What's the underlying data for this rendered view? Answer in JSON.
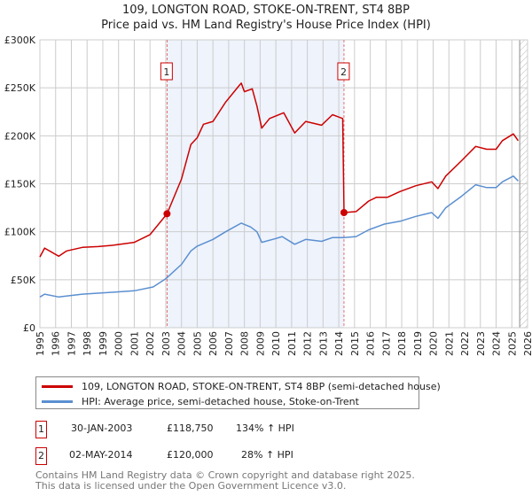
{
  "title_line1": "109, LONGTON ROAD, STOKE-ON-TRENT, ST4 8BP",
  "title_line2": "Price paid vs. HM Land Registry's House Price Index (HPI)",
  "colors": {
    "property": "#cc0000",
    "hpi": "#5b8fd0",
    "shade": "#eef3fc",
    "grid": "#cccccc"
  },
  "chart_data": {
    "type": "line",
    "xlim": [
      1995,
      2026
    ],
    "ylim": [
      0,
      300000
    ],
    "y_ticks": [
      0,
      50000,
      100000,
      150000,
      200000,
      250000,
      300000
    ],
    "y_tick_labels": [
      "£0",
      "£50K",
      "£100K",
      "£150K",
      "£200K",
      "£250K",
      "£300K"
    ],
    "x_ticks": [
      "1995",
      "1996",
      "1997",
      "1998",
      "1999",
      "2000",
      "2001",
      "2002",
      "2003",
      "2004",
      "2005",
      "2006",
      "2007",
      "2008",
      "2009",
      "2010",
      "2011",
      "2012",
      "2013",
      "2014",
      "2015",
      "2016",
      "2017",
      "2018",
      "2019",
      "2020",
      "2021",
      "2022",
      "2023",
      "2024",
      "2025",
      "2026"
    ],
    "grid": true,
    "shaded_range": [
      2003.08,
      2014.33
    ],
    "hatched_from": 2025.5,
    "series": [
      {
        "name": "109, LONGTON ROAD, STOKE-ON-TRENT, ST4 8BP (semi-detached house)",
        "x": [
          1995.0,
          1995.3,
          1996.2,
          1996.7,
          1997.7,
          1998.7,
          1999.7,
          2001.0,
          2002.0,
          2003.08,
          2004.0,
          2004.6,
          2005.0,
          2005.4,
          2006.0,
          2006.8,
          2007.6,
          2007.8,
          2008.0,
          2008.5,
          2008.8,
          2009.1,
          2009.6,
          2010.5,
          2011.2,
          2011.9,
          2012.9,
          2013.6,
          2014.25,
          2014.33,
          2015.1,
          2015.9,
          2016.4,
          2017.1,
          2017.9,
          2018.9,
          2019.9,
          2020.3,
          2020.8,
          2021.8,
          2022.7,
          2023.4,
          2024.0,
          2024.4,
          2025.1,
          2025.4
        ],
        "y": [
          73800,
          83000,
          74500,
          80000,
          83700,
          84600,
          86000,
          89000,
          97000,
          118750,
          155000,
          191000,
          198000,
          212000,
          215000,
          235000,
          251000,
          255000,
          246000,
          249000,
          231000,
          208000,
          218000,
          224000,
          203000,
          215000,
          211000,
          222000,
          218000,
          120000,
          121000,
          132000,
          136000,
          136000,
          142000,
          148000,
          152000,
          145000,
          158000,
          174000,
          189000,
          186000,
          186000,
          195000,
          202000,
          195000
        ]
      },
      {
        "name": "HPI: Average price, semi-detached house, Stoke-on-Trent",
        "x": [
          1995.0,
          1995.3,
          1996.2,
          1997.7,
          1999.7,
          2001.0,
          2002.2,
          2003.0,
          2004.0,
          2004.6,
          2005.0,
          2006.0,
          2006.8,
          2007.8,
          2008.4,
          2008.8,
          2009.1,
          2010.0,
          2010.4,
          2011.2,
          2011.9,
          2012.9,
          2013.6,
          2014.3,
          2015.1,
          2015.9,
          2016.9,
          2017.9,
          2018.9,
          2019.9,
          2020.3,
          2020.8,
          2021.8,
          2022.7,
          2023.4,
          2024.0,
          2024.4,
          2025.1,
          2025.4
        ],
        "y": [
          32000,
          35000,
          32000,
          35000,
          37000,
          38500,
          42500,
          51000,
          66000,
          80000,
          85000,
          92000,
          100000,
          109000,
          105000,
          100000,
          89000,
          93000,
          95000,
          87000,
          92000,
          90000,
          94000,
          94000,
          95000,
          102000,
          108000,
          111000,
          116000,
          120000,
          114000,
          125000,
          137000,
          149000,
          146000,
          146000,
          152000,
          158000,
          153000
        ]
      }
    ],
    "annotations": [
      {
        "label": "1",
        "x": 2003.08,
        "y": 118750
      },
      {
        "label": "2",
        "x": 2014.33,
        "y": 120000
      }
    ]
  },
  "legend": {
    "property": "109, LONGTON ROAD, STOKE-ON-TRENT, ST4 8BP (semi-detached house)",
    "hpi": "HPI: Average price, semi-detached house, Stoke-on-Trent"
  },
  "transactions": [
    {
      "num": "1",
      "date": "30-JAN-2003",
      "price": "£118,750",
      "hpi": "134% ↑ HPI"
    },
    {
      "num": "2",
      "date": "02-MAY-2014",
      "price": "£120,000",
      "hpi": "28% ↑ HPI"
    }
  ],
  "footer_line1": "Contains HM Land Registry data © Crown copyright and database right 2025.",
  "footer_line2": "This data is licensed under the Open Government Licence v3.0."
}
